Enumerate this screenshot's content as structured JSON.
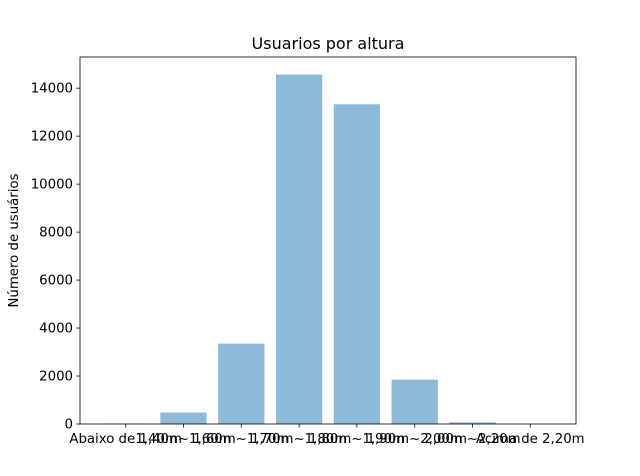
{
  "chart_data": {
    "type": "bar",
    "title": "Usuarios por altura",
    "xlabel": "",
    "ylabel": "Número de usuários",
    "categories": [
      "Abaixo de 1,40m",
      "1,40m~1,60m",
      "1,60m~1,70m",
      "1,70m~1,80m",
      "1,80m~1,90m",
      "1,90m~2,00m",
      "2,00m~2,20m",
      "Acima de 2,20m"
    ],
    "values": [
      15,
      480,
      3350,
      14570,
      13330,
      1850,
      70,
      5
    ],
    "ylim": [
      0,
      15300
    ],
    "yticks": [
      0,
      2000,
      4000,
      6000,
      8000,
      10000,
      12000,
      14000
    ],
    "ytick_labels": [
      "0",
      "2000",
      "4000",
      "6000",
      "8000",
      "10000",
      "12000",
      "14000"
    ],
    "bar_color": "#8dbad9",
    "grid": false,
    "legend": "none"
  }
}
